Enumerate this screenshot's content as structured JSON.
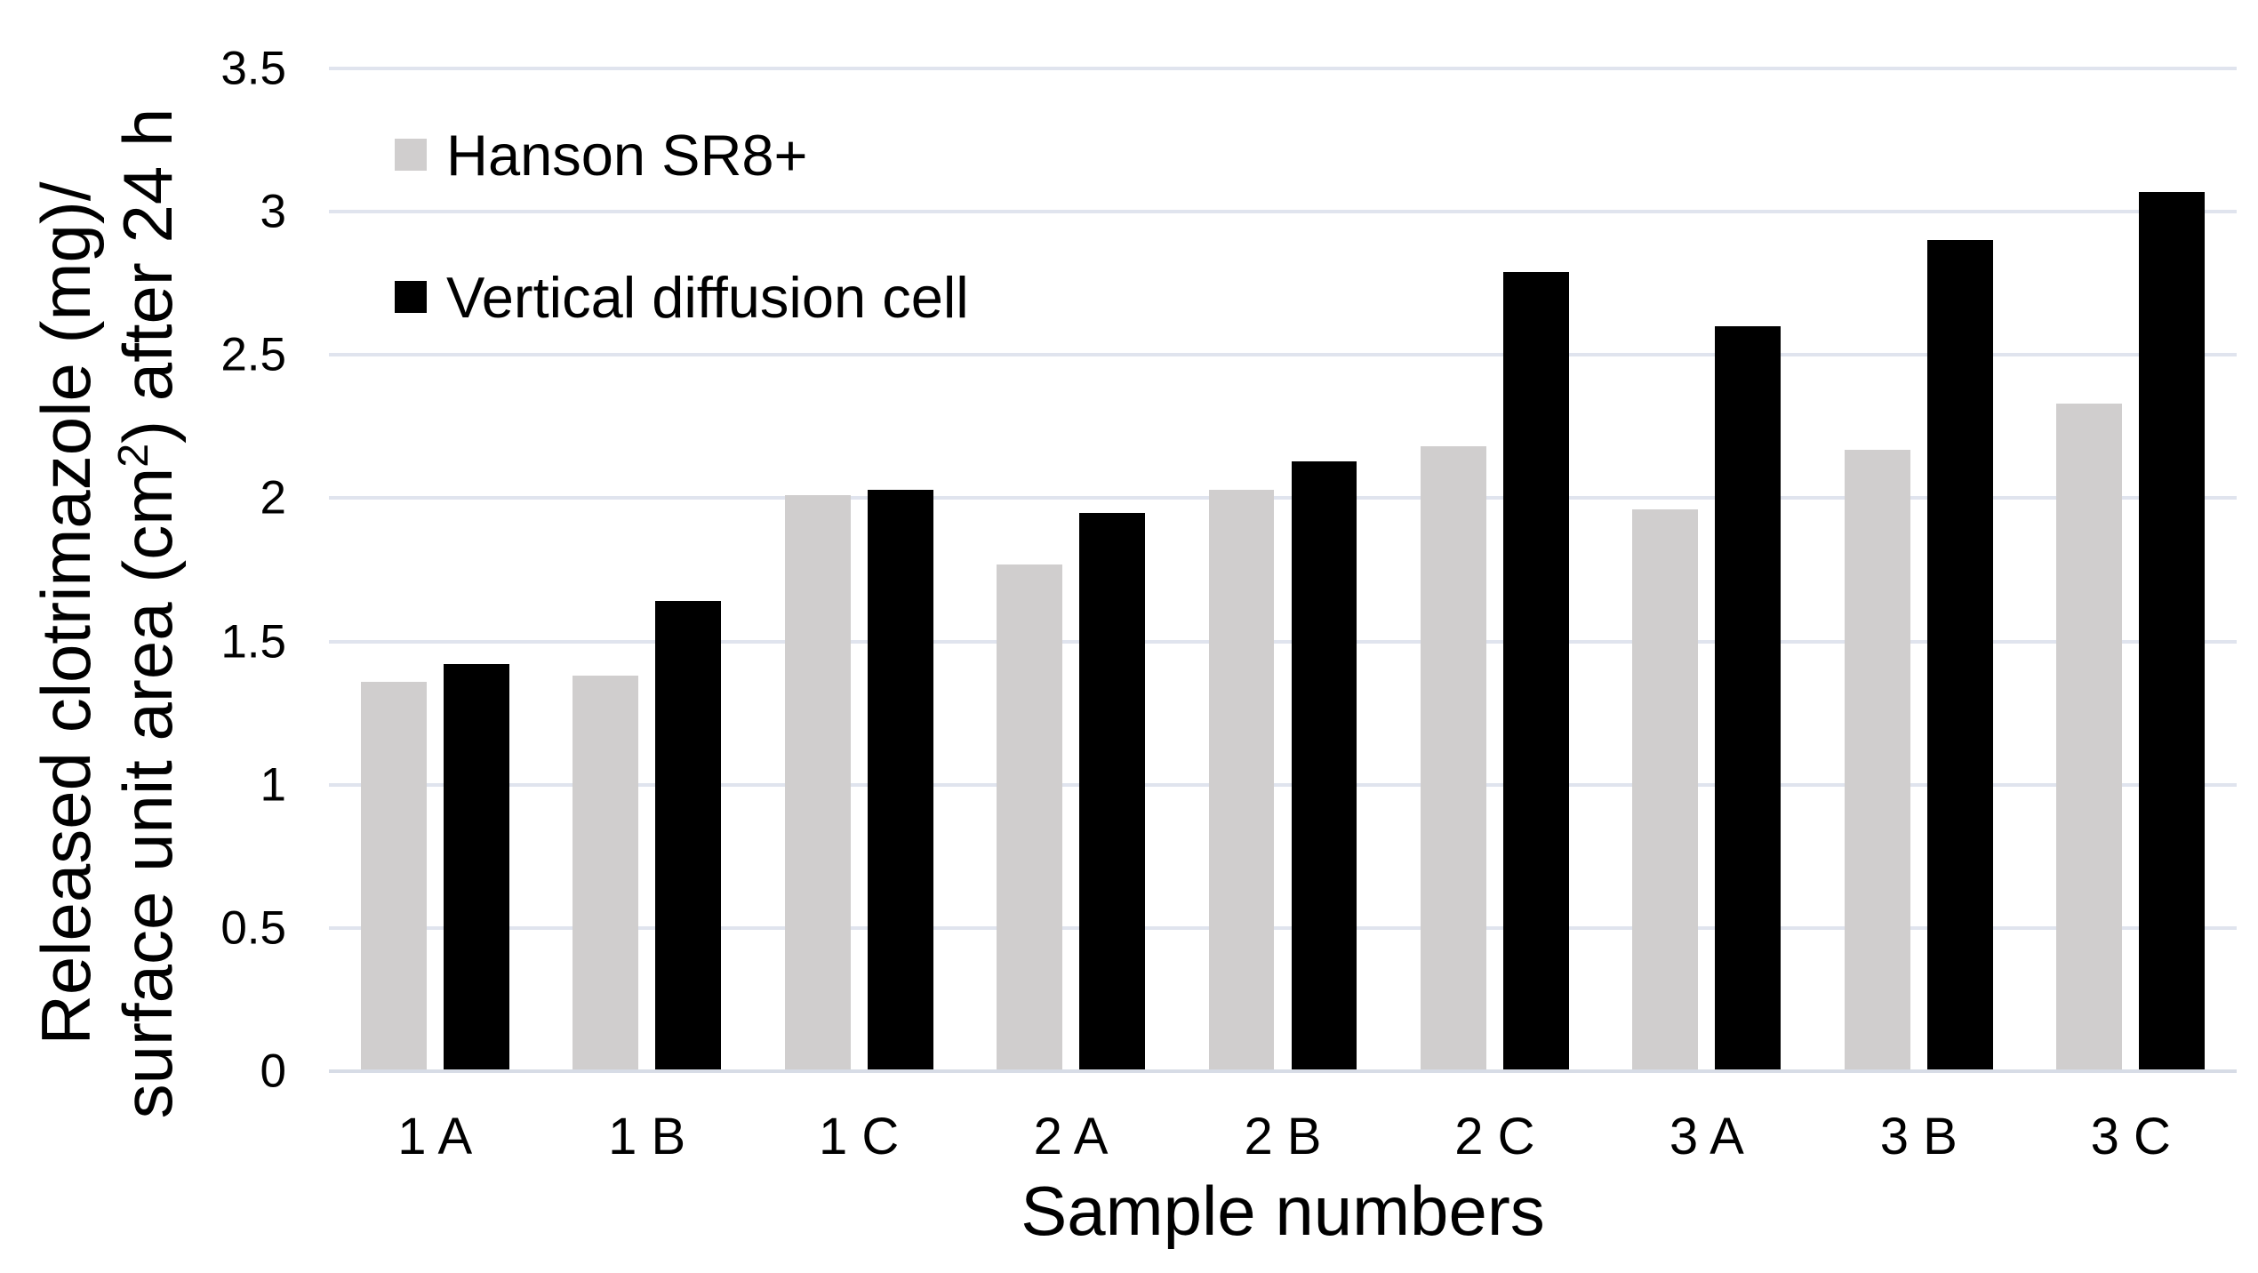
{
  "chart_data": {
    "type": "bar",
    "title": "",
    "categories": [
      "1 A",
      "1 B",
      "1 C",
      "2 A",
      "2 B",
      "2 C",
      "3 A",
      "3 B",
      "3 C"
    ],
    "series": [
      {
        "name": "Hanson SR8+",
        "color": "#d0cece",
        "values": [
          1.36,
          1.38,
          2.01,
          1.77,
          2.03,
          2.18,
          1.96,
          2.17,
          2.33
        ]
      },
      {
        "name": "Vertical diffusion cell",
        "color": "#000000",
        "values": [
          1.42,
          1.64,
          2.03,
          1.95,
          2.13,
          2.79,
          2.6,
          2.9,
          3.07
        ]
      }
    ],
    "xlabel": "Sample numbers",
    "ylabel_line1": "Released clotrimazole (mg)/",
    "ylabel_line2_pre": "surface unit area (cm",
    "ylabel_line2_sup": "2",
    "ylabel_line2_post": ") after 24 h",
    "ylim": [
      0,
      3.5
    ],
    "ytick_step": 0.5,
    "yticks": [
      "0",
      "0.5",
      "1",
      "1.5",
      "2",
      "2.5",
      "3",
      "3.5"
    ],
    "grid": "horizontal-major",
    "legend_position": "inside-top-left",
    "colors": {
      "background": "#ffffff",
      "gridline": "#e0e4ee",
      "axis_line": "#d7dce6",
      "text": "#000000",
      "series_gray": "#d0cece",
      "series_black": "#000000"
    }
  }
}
